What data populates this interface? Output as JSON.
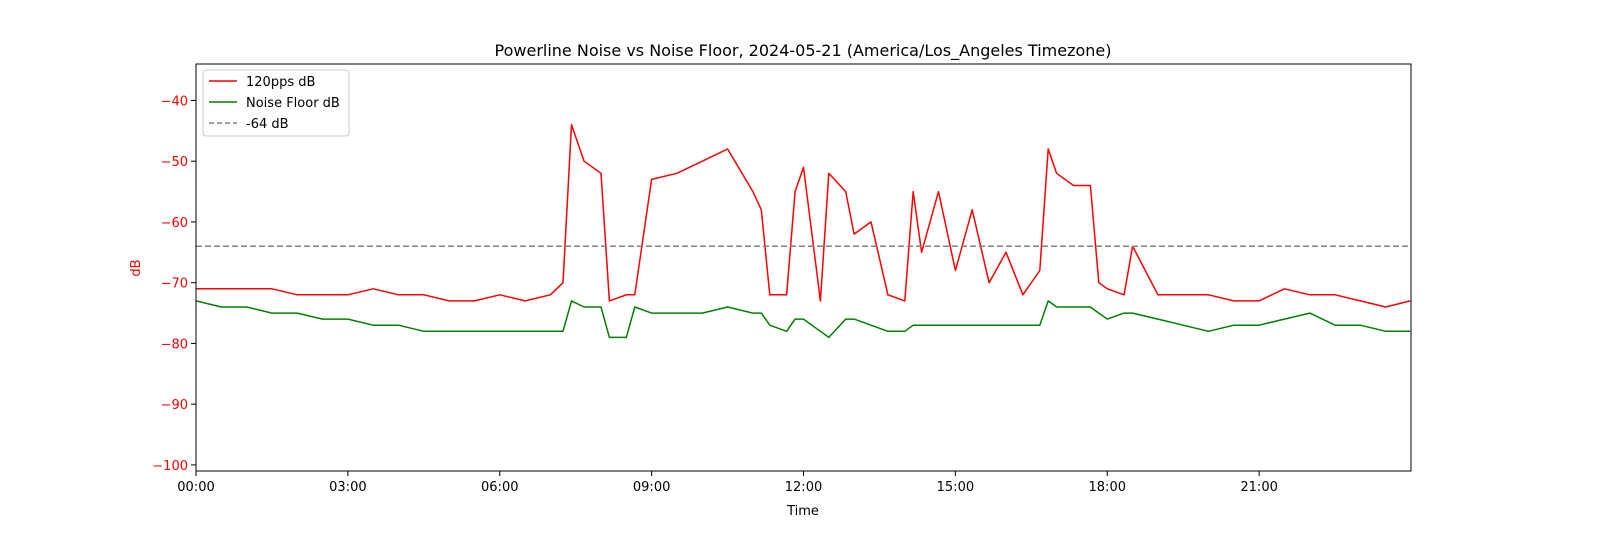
{
  "chart_data": {
    "type": "line",
    "title": "Powerline Noise vs Noise Floor, 2024-05-21 (America/Los_Angeles Timezone)",
    "xlabel": "Time",
    "ylabel": "dB",
    "xlim": [
      "00:00",
      "24:00"
    ],
    "ylim": [
      -101,
      -34
    ],
    "x_ticks": [
      "00:00",
      "03:00",
      "06:00",
      "09:00",
      "12:00",
      "15:00",
      "18:00",
      "21:00"
    ],
    "y_ticks": [
      -40,
      -50,
      -60,
      -70,
      -80,
      -90,
      -100
    ],
    "grid": false,
    "legend_position": "top-left",
    "x": [
      "00:00",
      "00:30",
      "01:00",
      "01:30",
      "02:00",
      "02:30",
      "03:00",
      "03:30",
      "04:00",
      "04:30",
      "05:00",
      "05:30",
      "06:00",
      "06:30",
      "07:00",
      "07:15",
      "07:25",
      "07:40",
      "08:00",
      "08:10",
      "08:30",
      "08:40",
      "09:00",
      "09:30",
      "10:00",
      "10:30",
      "11:00",
      "11:10",
      "11:20",
      "11:40",
      "11:50",
      "12:00",
      "12:20",
      "12:30",
      "12:50",
      "13:00",
      "13:20",
      "13:40",
      "14:00",
      "14:10",
      "14:20",
      "14:40",
      "15:00",
      "15:20",
      "15:40",
      "16:00",
      "16:20",
      "16:40",
      "16:50",
      "17:00",
      "17:20",
      "17:40",
      "17:50",
      "18:00",
      "18:20",
      "18:30",
      "19:00",
      "19:30",
      "20:00",
      "20:30",
      "21:00",
      "21:30",
      "22:00",
      "22:30",
      "23:00",
      "23:30",
      "23:59"
    ],
    "series": [
      {
        "name": "120pps dB",
        "color": "#ff0000",
        "style": "solid",
        "values": [
          -71,
          -71,
          -71,
          -71,
          -72,
          -72,
          -72,
          -71,
          -72,
          -72,
          -73,
          -73,
          -72,
          -73,
          -72,
          -70,
          -44,
          -50,
          -52,
          -73,
          -72,
          -72,
          -53,
          -52,
          -50,
          -48,
          -55,
          -58,
          -72,
          -72,
          -55,
          -51,
          -73,
          -52,
          -55,
          -62,
          -60,
          -72,
          -73,
          -55,
          -65,
          -55,
          -68,
          -58,
          -70,
          -65,
          -72,
          -68,
          -48,
          -52,
          -54,
          -54,
          -70,
          -71,
          -72,
          -64,
          -72,
          -72,
          -72,
          -73,
          -73,
          -71,
          -72,
          -72,
          -73,
          -74,
          -73
        ]
      },
      {
        "name": "Noise Floor dB",
        "color": "#008000",
        "style": "solid",
        "values": [
          -73,
          -74,
          -74,
          -75,
          -75,
          -76,
          -76,
          -77,
          -77,
          -78,
          -78,
          -78,
          -78,
          -78,
          -78,
          -78,
          -73,
          -74,
          -74,
          -79,
          -79,
          -74,
          -75,
          -75,
          -75,
          -74,
          -75,
          -75,
          -77,
          -78,
          -76,
          -76,
          -78,
          -79,
          -76,
          -76,
          -77,
          -78,
          -78,
          -77,
          -77,
          -77,
          -77,
          -77,
          -77,
          -77,
          -77,
          -77,
          -73,
          -74,
          -74,
          -74,
          -75,
          -76,
          -75,
          -75,
          -76,
          -77,
          -78,
          -77,
          -77,
          -76,
          -75,
          -77,
          -77,
          -78,
          -78
        ]
      },
      {
        "name": "-64 dB",
        "color": "#808080",
        "style": "dashed",
        "constant": -64
      }
    ]
  }
}
